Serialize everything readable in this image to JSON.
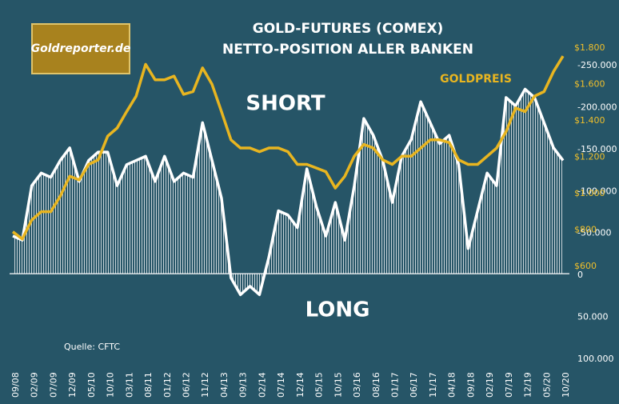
{
  "chart_data": {
    "type": "line",
    "title": "GOLD-FUTURES (COMEX)",
    "subtitle": "NETTO-POSITION ALLER BANKEN",
    "logo": "Goldreporter.de",
    "source": "Quelle: CFTC",
    "annotations": [
      "SHORT",
      "LONG",
      "GOLDPREIS"
    ],
    "categories": [
      "09/08",
      null,
      "02/09",
      null,
      "07/09",
      null,
      "12/09",
      null,
      "05/10",
      null,
      "10/10",
      null,
      "03/11",
      null,
      "08/11",
      null,
      "01/12",
      null,
      "06/12",
      null,
      "11/12",
      null,
      "04/13",
      null,
      "09/13",
      null,
      "02/14",
      null,
      "07/14",
      null,
      "12/14",
      null,
      "05/15",
      null,
      "10/15",
      null,
      "03/16",
      null,
      "08/16",
      null,
      "01/17",
      null,
      "06/17",
      null,
      "11/17",
      null,
      "04/18",
      null,
      "09/18",
      null,
      "02/19",
      null,
      "07/19",
      null,
      "12/19",
      null,
      "05/20",
      null,
      "10/20"
    ],
    "series": [
      {
        "name": "Netto-Position",
        "color": "#ffffff",
        "axis": "y",
        "values": [
          -45000,
          -40000,
          -105000,
          -120000,
          -115000,
          -135000,
          -150000,
          -110000,
          -135000,
          -145000,
          -145000,
          -105000,
          -130000,
          -135000,
          -140000,
          -110000,
          -140000,
          -110000,
          -120000,
          -115000,
          -180000,
          -135000,
          -90000,
          5000,
          25000,
          15000,
          25000,
          -20000,
          -75000,
          -70000,
          -55000,
          -125000,
          -80000,
          -45000,
          -85000,
          -40000,
          -105000,
          -185000,
          -165000,
          -135000,
          -85000,
          -140000,
          -160000,
          -205000,
          -180000,
          -155000,
          -165000,
          -130000,
          -30000,
          -75000,
          -120000,
          -105000,
          -210000,
          -200000,
          -220000,
          -210000,
          -180000,
          -150000,
          -135000
        ]
      },
      {
        "name": "GOLDPREIS",
        "color": "#e8b520",
        "axis": "y2",
        "values": [
          830,
          790,
          895,
          940,
          940,
          1025,
          1135,
          1115,
          1200,
          1225,
          1355,
          1400,
          1490,
          1575,
          1750,
          1665,
          1665,
          1685,
          1585,
          1600,
          1730,
          1640,
          1490,
          1335,
          1290,
          1290,
          1270,
          1290,
          1290,
          1270,
          1200,
          1200,
          1180,
          1160,
          1070,
          1135,
          1245,
          1310,
          1290,
          1225,
          1200,
          1245,
          1245,
          1290,
          1335,
          1335,
          1320,
          1225,
          1200,
          1200,
          1245,
          1290,
          1380,
          1510,
          1490,
          1575,
          1600,
          1710,
          1795
        ]
      }
    ],
    "ylim": [
      -250000,
      100000
    ],
    "y_inverted": true,
    "yticks": [
      {
        "value": -250000,
        "label": "-250.000"
      },
      {
        "value": -200000,
        "label": "-200.000"
      },
      {
        "value": -150000,
        "label": "-150.000"
      },
      {
        "value": -100000,
        "label": "-100.000"
      },
      {
        "value": -50000,
        "label": "-50.000"
      },
      0,
      {
        "value": 50000,
        "label": "50.000"
      },
      {
        "value": 100000,
        "label": "100.000"
      }
    ],
    "y2lim": [
      600,
      1800
    ],
    "y2ticks": [
      {
        "value": 1800,
        "label": "$1.800"
      },
      {
        "value": 1600,
        "label": "$1.600"
      },
      {
        "value": 1400,
        "label": "$1.400"
      },
      {
        "value": 1200,
        "label": "$1.200"
      },
      {
        "value": 1000,
        "label": "$1.000"
      },
      {
        "value": 800,
        "label": "$800"
      },
      {
        "value": 600,
        "label": "$600"
      }
    ]
  }
}
